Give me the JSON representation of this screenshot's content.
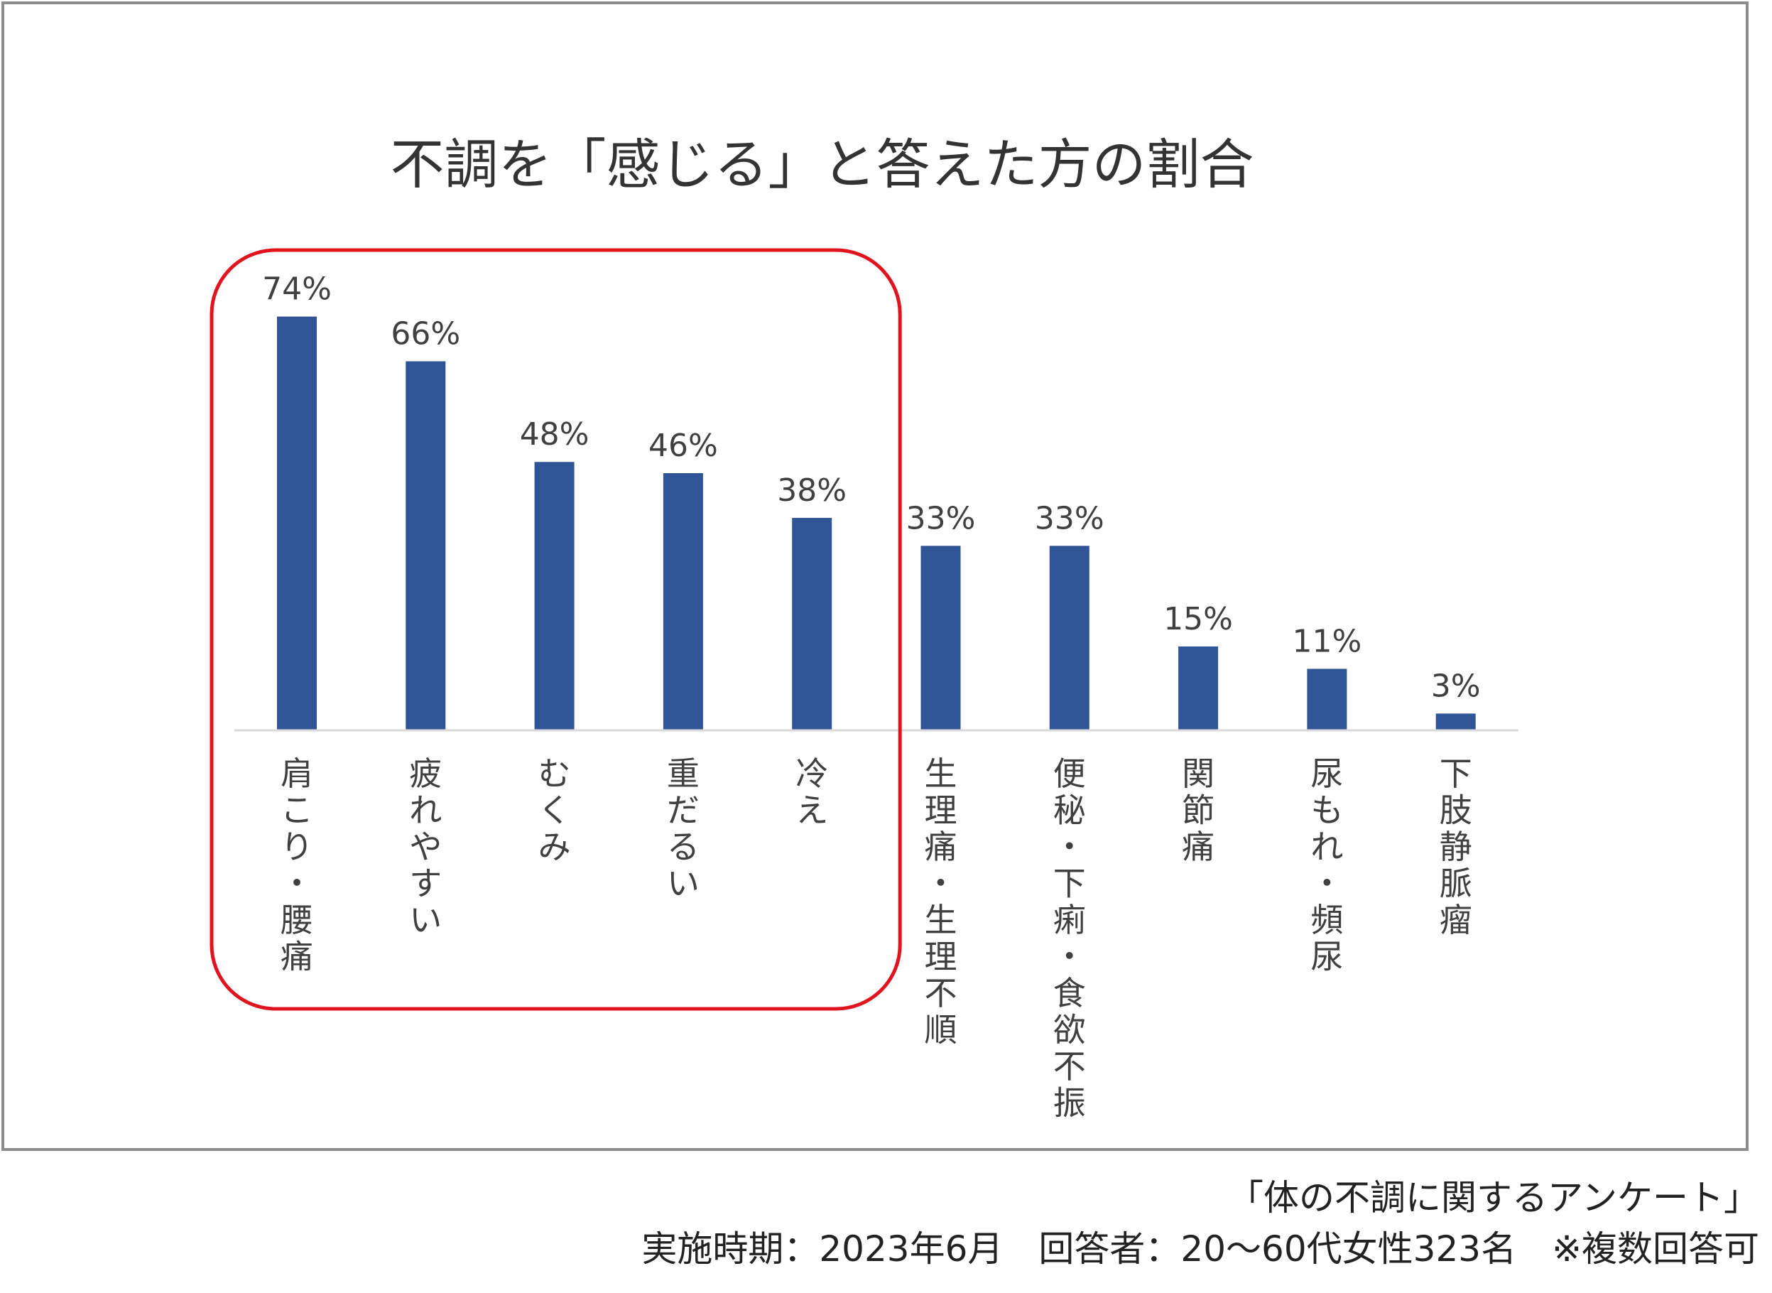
{
  "chart_data": {
    "type": "bar",
    "title": "不調を「感じる」と答えた方の割合",
    "categories": [
      "肩こり・腰痛",
      "疲れやすい",
      "むくみ",
      "重だるい",
      "冷え",
      "生理痛・生理不順",
      "便秘・下痢・食欲不振",
      "関節痛",
      "尿もれ・頻尿",
      "下肢静脈瘤"
    ],
    "values": [
      74,
      66,
      48,
      46,
      38,
      33,
      33,
      15,
      11,
      3
    ],
    "value_labels": [
      "74%",
      "66%",
      "48%",
      "46%",
      "38%",
      "33%",
      "33%",
      "15%",
      "11%",
      "3%"
    ],
    "ylim": [
      0,
      80
    ],
    "xlabel": "",
    "ylabel": "",
    "grid": false,
    "legend": "none",
    "highlight_categories": [
      "肩こり・腰痛",
      "疲れやすい",
      "むくみ",
      "重だるい",
      "冷え"
    ],
    "bar_color": "#2f5597",
    "highlight_color": "#e0141e"
  },
  "footer": {
    "source": "「体の不調に関するアンケート」",
    "details": "実施時期：2023年6月　回答者：20～60代女性323名　※複数回答可"
  }
}
